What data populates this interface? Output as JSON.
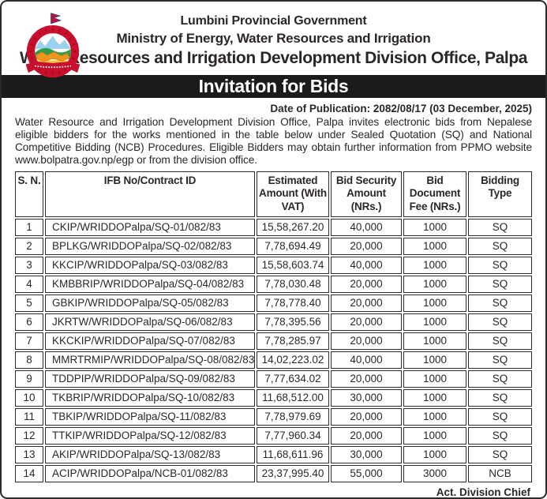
{
  "header": {
    "government": "Lumbini Provincial Government",
    "ministry": "Ministry of Energy, Water Resources and Irrigation",
    "office": "Water Resources and Irrigation Development Division Office, Palpa",
    "banner": "Invitation for Bids",
    "emblem": "nepal-government-emblem"
  },
  "notice": {
    "publication_date": "Date of Publication: 2082/08/17 (03 December, 2025)",
    "body": "Water Resource and Irrigation Development Division Office, Palpa invites electronic bids from Nepalese eligible bidders for the works mentioned in the table below under Sealed Quotation (SQ) and National Competitive Bidding (NCB) Procedures. Eligible Bidders may obtain further information from PPMO website www.bolpatra.gov.np/egp or from the division office.",
    "signature": "Act. Division Chief"
  },
  "table": {
    "headers": [
      "S. N.",
      "IFB No/Contract ID",
      "Estimated Amount (With VAT)",
      "Bid Security Amount (NRs.)",
      "Bid Document Fee (NRs.)",
      "Bidding Type"
    ],
    "rows": [
      {
        "sn": "1",
        "ifb": "CKIP/WRIDDOPalpa/SQ-01/082/83",
        "amount": "15,58,267.20",
        "security": "40,000",
        "fee": "1000",
        "type": "SQ"
      },
      {
        "sn": "2",
        "ifb": "BPLKG/WRIDDOPalpa/SQ-02/082/83",
        "amount": "7,78,694.49",
        "security": "20,000",
        "fee": "1000",
        "type": "SQ"
      },
      {
        "sn": "3",
        "ifb": "KKCIP/WRIDDOPalpa/SQ-03/082/83",
        "amount": "15,58,603.74",
        "security": "40,000",
        "fee": "1000",
        "type": "SQ"
      },
      {
        "sn": "4",
        "ifb": "KMBBRIP/WRIDDOPalpa/SQ-04/082/83",
        "amount": "7,78,030.48",
        "security": "20,000",
        "fee": "1000",
        "type": "SQ"
      },
      {
        "sn": "5",
        "ifb": "GBKIP/WRIDDOPalpa/SQ-05/082/83",
        "amount": "7,78,778.40",
        "security": "20,000",
        "fee": "1000",
        "type": "SQ"
      },
      {
        "sn": "6",
        "ifb": "JKRTW/WRIDDOPalpa/SQ-06/082/83",
        "amount": "7,78,395.56",
        "security": "20,000",
        "fee": "1000",
        "type": "SQ"
      },
      {
        "sn": "7",
        "ifb": "KKCKIP/WRIDDOPalpa/SQ-07/082/83",
        "amount": "7,78,285.97",
        "security": "20,000",
        "fee": "1000",
        "type": "SQ"
      },
      {
        "sn": "8",
        "ifb": "MMRTRMIP/WRIDDOPalpa/SQ-08/082/83",
        "amount": "14,02,223.02",
        "security": "40,000",
        "fee": "1000",
        "type": "SQ"
      },
      {
        "sn": "9",
        "ifb": "TDDPIP/WRIDDOPalpa/SQ-09/082/83",
        "amount": "7,77,634.02",
        "security": "20,000",
        "fee": "1000",
        "type": "SQ"
      },
      {
        "sn": "10",
        "ifb": "TKBRIP/WRIDDOPalpa/SQ-10/082/83",
        "amount": "11,68,512.00",
        "security": "30,000",
        "fee": "1000",
        "type": "SQ"
      },
      {
        "sn": "11",
        "ifb": "TBKIP/WRIDDOPalpa/SQ-11/082/83",
        "amount": "7,78,979.69",
        "security": "20,000",
        "fee": "1000",
        "type": "SQ"
      },
      {
        "sn": "12",
        "ifb": "TTKIP/WRIDDOPalpa/SQ-12/082/83",
        "amount": "7,77,960.34",
        "security": "20,000",
        "fee": "1000",
        "type": "SQ"
      },
      {
        "sn": "13",
        "ifb": "AKIP/WRIDDOPalpa/SQ-13/082/83",
        "amount": "11,68,611.96",
        "security": "30,000",
        "fee": "1000",
        "type": "SQ"
      },
      {
        "sn": "14",
        "ifb": "ACIP/WRIDDOPalpa/NCB-01/082/83",
        "amount": "23,37,995.40",
        "security": "55,000",
        "fee": "3000",
        "type": "NCB"
      }
    ]
  },
  "colors": {
    "ink": "#2b2726",
    "border": "#2b2b2b",
    "banner": "#1b1b19",
    "paper": "#ffffff",
    "emblem_red": "#c8102e",
    "emblem_dark_red": "#8e0e0e",
    "emblem_blue": "#9bd1ec",
    "emblem_green": "#2e9e49",
    "emblem_orange": "#f0941e",
    "emblem_yellow": "#f6c33f"
  }
}
